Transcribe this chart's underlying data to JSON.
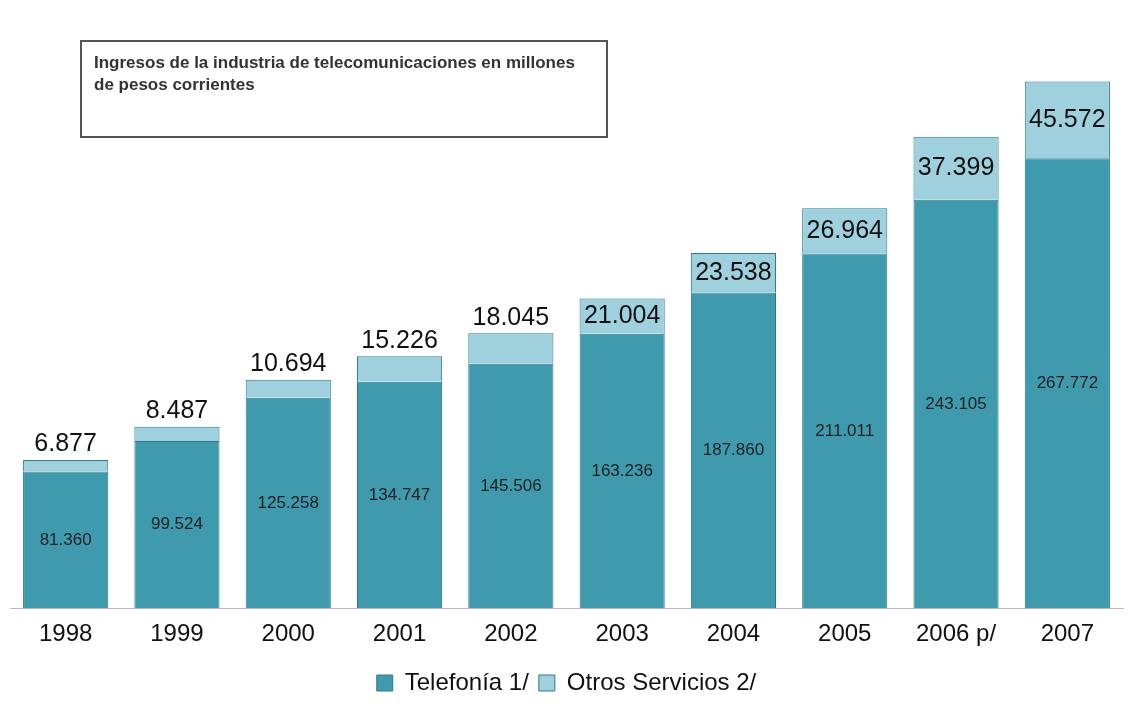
{
  "chart_data": {
    "type": "bar",
    "title": "Ingresos de la industria de telecomunicaciones en millones de pesos corrientes",
    "categories": [
      "1998",
      "1999",
      "2000",
      "2001",
      "2002",
      "2003",
      "2004",
      "2005",
      "2006 p/",
      "2007"
    ],
    "stacked": true,
    "grid": false,
    "legend": "bottom",
    "tick_labels": "x",
    "series": [
      {
        "name": "Telefonía 1/",
        "color": "#3f9aae",
        "values": [
          81360,
          99524,
          125258,
          134747,
          145506,
          163236,
          187860,
          211011,
          243105,
          267772
        ],
        "value_labels": [
          "81.360",
          "99.524",
          "125.258",
          "134.747",
          "145.506",
          "163.236",
          "187.860",
          "211.011",
          "243.105",
          "267.772"
        ]
      },
      {
        "name": "Otros Servicios 2/",
        "color": "#9fd0de",
        "values": [
          6877,
          8487,
          10694,
          15226,
          18045,
          21004,
          23538,
          26964,
          37399,
          45572
        ],
        "value_labels": [
          "6.877",
          "8.487",
          "10.694",
          "15.226",
          "18.045",
          "21.004",
          "23.538",
          "26.964",
          "37.399",
          "45.572"
        ]
      }
    ]
  }
}
